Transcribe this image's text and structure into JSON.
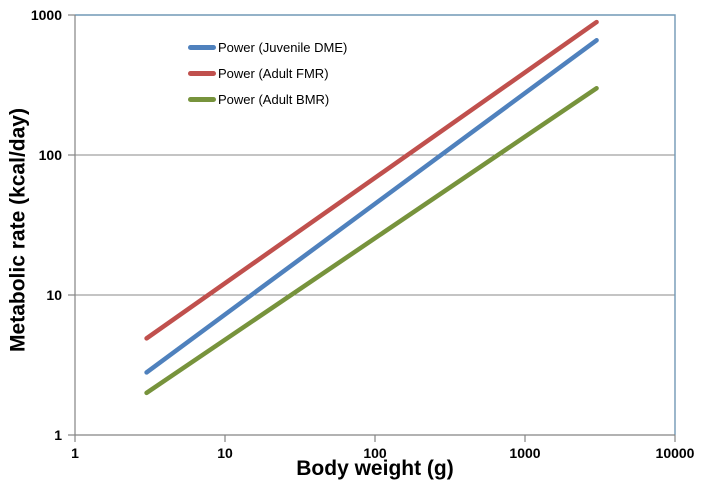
{
  "chart_data": {
    "type": "line",
    "subtype": "power-law trendlines on log-log axes",
    "title": "",
    "xlabel": "Body weight (g)",
    "ylabel": "Metabolic rate (kcal/day)",
    "scale": {
      "x": "log10",
      "y": "log10"
    },
    "xlim": [
      1,
      10000
    ],
    "ylim": [
      1,
      1000
    ],
    "x_tick_values": [
      1,
      10,
      100,
      1000,
      10000
    ],
    "x_tick_labels": [
      "1",
      "10",
      "100",
      "1000",
      "10000"
    ],
    "y_tick_values": [
      1,
      10,
      100,
      1000
    ],
    "y_tick_labels": [
      "1",
      "10",
      "100",
      "1000"
    ],
    "grid": "horizontal gridlines at y decades only",
    "legend_position": "inset top-left, no border",
    "series": [
      {
        "name": "Power (Juvenile DME)",
        "color": "#4F81BD",
        "x_range_g": [
          3,
          3000
        ],
        "y_endpoints_kcal_per_day": [
          2.8,
          660
        ],
        "estimated_power_fit": {
          "coefficient": 1.18,
          "exponent": 0.79
        }
      },
      {
        "name": "Power (Adult FMR)",
        "color": "#C0504D",
        "x_range_g": [
          3,
          3000
        ],
        "y_endpoints_kcal_per_day": [
          4.9,
          890
        ],
        "estimated_power_fit": {
          "coefficient": 2.16,
          "exponent": 0.75
        }
      },
      {
        "name": "Power (Adult BMR)",
        "color": "#77933C",
        "x_range_g": [
          3,
          3000
        ],
        "y_endpoints_kcal_per_day": [
          2.0,
          300
        ],
        "estimated_power_fit": {
          "coefficient": 0.9,
          "exponent": 0.73
        }
      }
    ],
    "colors": {
      "axis": "#848484",
      "gridline": "#8A8A8A",
      "frame": "#7198B5",
      "text": "#000000",
      "background": "#FFFFFF"
    }
  }
}
